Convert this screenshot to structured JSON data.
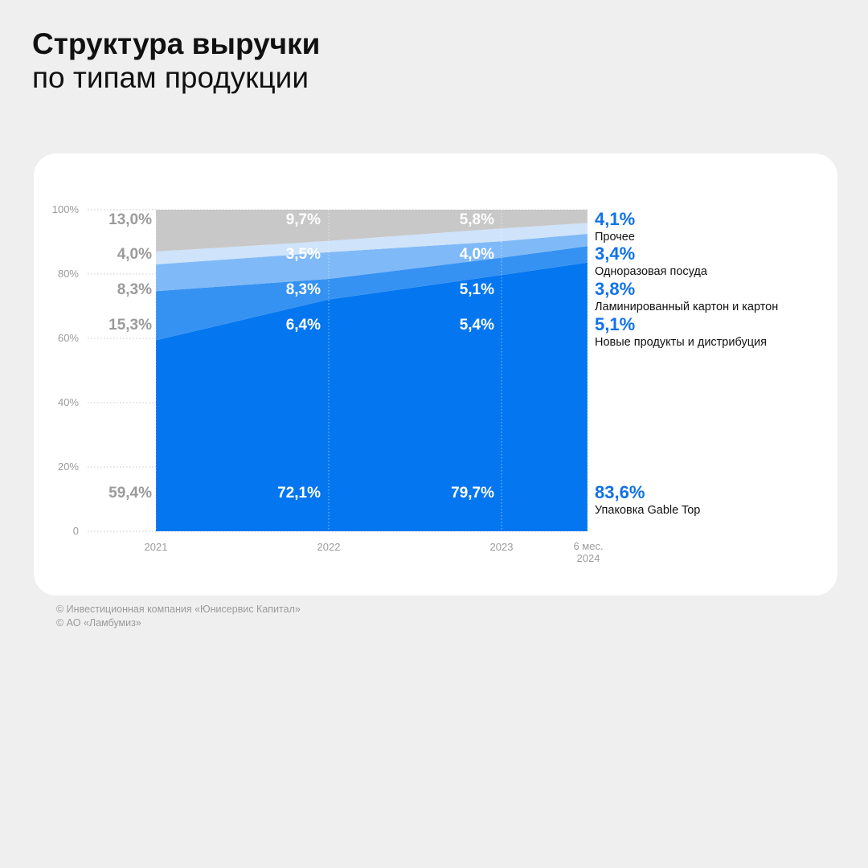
{
  "page": {
    "title_line1": "Структура выручки",
    "title_line2": "по типам продукции"
  },
  "footer": {
    "lines": [
      "© Инвестиционная компания «Юнисервис Капитал»",
      "© АО «Ламбумиз»"
    ]
  },
  "colors": {
    "background": "#efefef",
    "card": "#ffffff",
    "gable_top": "#0476ef",
    "new_products": "#3592f2",
    "laminated": "#7fb9f7",
    "disposable": "#cfe3fb",
    "other": "#c8c8c8",
    "label_start": "#9b9b9b",
    "label_inner": "#ffffff",
    "label_end_value": "#0f72e8",
    "label_end_name": "#111111",
    "axis_text": "#9b9b9b"
  },
  "chart_data": {
    "type": "area",
    "stacked": true,
    "x": [
      "2021",
      "2022",
      "2023",
      "6 мес. 2024"
    ],
    "ylim": [
      0,
      100
    ],
    "yticks": [
      0,
      20,
      40,
      60,
      80,
      100
    ],
    "ytick_labels": [
      "0",
      "20%",
      "40%",
      "60%",
      "80%",
      "100%"
    ],
    "grid": true,
    "legend": "right",
    "series": [
      {
        "name": "Упаковка Gable Top",
        "values": [
          59.4,
          72.1,
          79.7,
          83.6
        ],
        "labels": [
          "59,4%",
          "72,1%",
          "79,7%",
          "83,6%"
        ]
      },
      {
        "name": "Новые продукты и дистрибуция",
        "values": [
          15.3,
          6.4,
          5.4,
          5.1
        ],
        "labels": [
          "15,3%",
          "6,4%",
          "5,4%",
          "5,1%"
        ]
      },
      {
        "name": "Ламинированный картон и картон",
        "values": [
          8.3,
          8.3,
          5.1,
          3.8
        ],
        "labels": [
          "8,3%",
          "8,3%",
          "5,1%",
          "3,8%"
        ]
      },
      {
        "name": "Одноразовая посуда",
        "values": [
          4.0,
          3.5,
          4.0,
          3.4
        ],
        "labels": [
          "4,0%",
          "3,5%",
          "4,0%",
          "3,4%"
        ]
      },
      {
        "name": "Прочее",
        "values": [
          13.0,
          9.7,
          5.8,
          4.1
        ],
        "labels": [
          "13,0%",
          "9,7%",
          "5,8%",
          "4,1%"
        ]
      }
    ]
  }
}
